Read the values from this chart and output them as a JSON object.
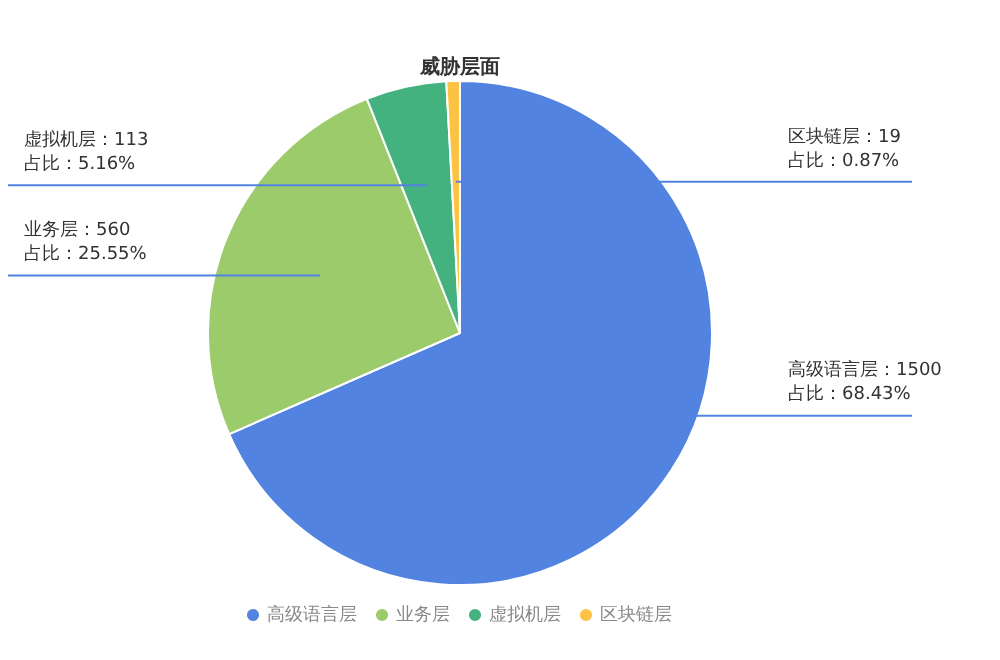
{
  "chart_data": {
    "type": "pie",
    "title": "威胁层面",
    "categories": [
      "高级语言层",
      "业务层",
      "虚拟机层",
      "区块链层"
    ],
    "values": [
      1500,
      560,
      113,
      19
    ],
    "colors": [
      "#5283e0",
      "#9ccb6b",
      "#43b27f",
      "#fbc244"
    ],
    "value_labels": [
      "高级语言层：1500\n占比：68.43%",
      "业务层：560\n占比：25.55%",
      "虚拟机层：113\n占比：5.16%",
      "区块链层：19\n占比：0.87%"
    ],
    "legend": "bottom"
  }
}
